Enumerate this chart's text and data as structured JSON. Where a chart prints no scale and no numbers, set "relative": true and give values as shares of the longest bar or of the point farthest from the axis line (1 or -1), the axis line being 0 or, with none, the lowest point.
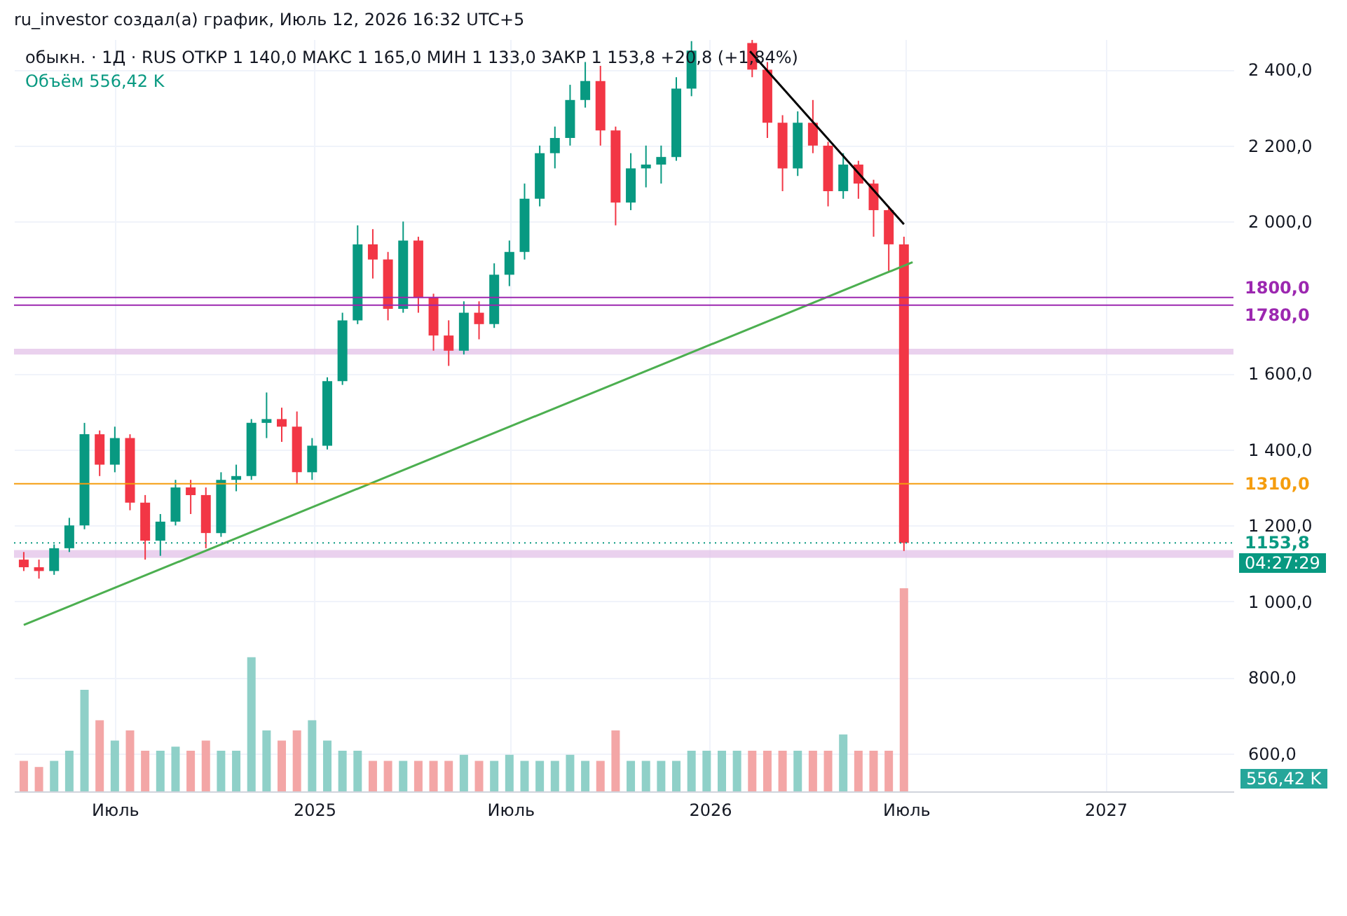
{
  "chart_data": [
    {
      "type": "candlestick",
      "title": "обыкн. · 1Д · RUS  ОТКР 1 140,0  МАКС 1 165,0  МИН 1 133,0  ЗАКР 1 153,8  +20,8 (+1,84%)",
      "annotations": [
        "ru_investor создал(а) график, Июль 12, 2026 16:32 UTC+5",
        "04:27:29"
      ],
      "x": [
        "2024-04-08",
        "2024-04-22",
        "2024-05-06",
        "2024-05-20",
        "2024-06-03",
        "2024-06-17",
        "2024-07-01",
        "2024-07-15",
        "2024-07-29",
        "2024-08-12",
        "2024-08-26",
        "2024-09-09",
        "2024-09-23",
        "2024-10-07",
        "2024-10-21",
        "2024-11-04",
        "2024-11-18",
        "2024-12-02",
        "2024-12-16",
        "2024-12-30",
        "2025-01-13",
        "2025-01-27",
        "2025-02-10",
        "2025-02-24",
        "2025-03-10",
        "2025-03-24",
        "2025-04-07",
        "2025-04-21",
        "2025-05-05",
        "2025-05-19",
        "2025-06-02",
        "2025-06-16",
        "2025-06-30",
        "2025-07-14",
        "2025-07-28",
        "2025-08-11",
        "2025-08-25",
        "2025-09-08",
        "2025-09-22",
        "2025-10-06",
        "2025-10-20",
        "2025-11-03",
        "2025-11-17",
        "2025-12-01",
        "2025-12-15",
        "2026-02-09",
        "2026-02-23",
        "2026-03-09",
        "2026-03-23",
        "2026-04-06",
        "2026-04-20",
        "2026-05-04",
        "2026-05-18",
        "2026-06-01",
        "2026-06-15",
        "2026-06-29"
      ],
      "ohlc": [
        [
          1110,
          1130,
          1080,
          1090
        ],
        [
          1090,
          1110,
          1060,
          1080
        ],
        [
          1080,
          1150,
          1070,
          1140
        ],
        [
          1140,
          1220,
          1130,
          1200
        ],
        [
          1200,
          1470,
          1190,
          1440
        ],
        [
          1440,
          1450,
          1330,
          1360
        ],
        [
          1360,
          1460,
          1340,
          1430
        ],
        [
          1430,
          1440,
          1240,
          1260
        ],
        [
          1260,
          1280,
          1110,
          1160
        ],
        [
          1160,
          1230,
          1120,
          1210
        ],
        [
          1210,
          1320,
          1200,
          1300
        ],
        [
          1300,
          1320,
          1230,
          1280
        ],
        [
          1280,
          1300,
          1140,
          1180
        ],
        [
          1180,
          1340,
          1170,
          1320
        ],
        [
          1320,
          1360,
          1290,
          1330
        ],
        [
          1330,
          1480,
          1320,
          1470
        ],
        [
          1470,
          1550,
          1430,
          1480
        ],
        [
          1480,
          1510,
          1420,
          1460
        ],
        [
          1460,
          1500,
          1310,
          1340
        ],
        [
          1340,
          1430,
          1320,
          1410
        ],
        [
          1410,
          1590,
          1400,
          1580
        ],
        [
          1580,
          1760,
          1570,
          1740
        ],
        [
          1740,
          1990,
          1730,
          1940
        ],
        [
          1940,
          1980,
          1850,
          1900
        ],
        [
          1900,
          1920,
          1740,
          1770
        ],
        [
          1770,
          2000,
          1760,
          1950
        ],
        [
          1950,
          1960,
          1760,
          1800
        ],
        [
          1800,
          1810,
          1660,
          1700
        ],
        [
          1700,
          1740,
          1620,
          1660
        ],
        [
          1660,
          1790,
          1650,
          1760
        ],
        [
          1760,
          1790,
          1690,
          1730
        ],
        [
          1730,
          1890,
          1720,
          1860
        ],
        [
          1860,
          1950,
          1830,
          1920
        ],
        [
          1920,
          2100,
          1900,
          2060
        ],
        [
          2060,
          2200,
          2040,
          2180
        ],
        [
          2180,
          2250,
          2140,
          2220
        ],
        [
          2220,
          2360,
          2200,
          2320
        ],
        [
          2320,
          2420,
          2300,
          2370
        ],
        [
          2370,
          2410,
          2200,
          2240
        ],
        [
          2240,
          2250,
          1990,
          2050
        ],
        [
          2050,
          2180,
          2030,
          2140
        ],
        [
          2140,
          2200,
          2090,
          2150
        ],
        [
          2150,
          2200,
          2100,
          2170
        ],
        [
          2170,
          2380,
          2160,
          2350
        ],
        [
          2350,
          2475,
          2330,
          2450
        ],
        [
          2470,
          2478,
          2380,
          2400
        ],
        [
          2400,
          2420,
          2220,
          2260
        ],
        [
          2260,
          2280,
          2080,
          2140
        ],
        [
          2140,
          2290,
          2120,
          2260
        ],
        [
          2260,
          2320,
          2180,
          2200
        ],
        [
          2200,
          2210,
          2040,
          2080
        ],
        [
          2080,
          2180,
          2060,
          2150
        ],
        [
          2150,
          2160,
          2060,
          2100
        ],
        [
          2100,
          2110,
          1960,
          2030
        ],
        [
          2030,
          2040,
          1870,
          1940
        ],
        [
          1940,
          1960,
          1133,
          1153.8
        ]
      ],
      "colors": [
        "#f23645",
        "#f23645",
        "#089981",
        "#089981",
        "#089981",
        "#f23645",
        "#089981",
        "#f23645",
        "#f23645",
        "#089981",
        "#089981",
        "#f23645",
        "#f23645",
        "#089981",
        "#089981",
        "#089981",
        "#089981",
        "#f23645",
        "#f23645",
        "#089981",
        "#089981",
        "#089981",
        "#089981",
        "#f23645",
        "#f23645",
        "#089981",
        "#f23645",
        "#f23645",
        "#f23645",
        "#089981",
        "#f23645",
        "#089981",
        "#089981",
        "#089981",
        "#089981",
        "#089981",
        "#089981",
        "#089981",
        "#f23645",
        "#f23645",
        "#089981",
        "#089981",
        "#089981",
        "#089981",
        "#089981",
        "#f23645",
        "#f23645",
        "#f23645",
        "#089981",
        "#f23645",
        "#f23645",
        "#089981",
        "#f23645",
        "#f23645",
        "#f23645",
        "#f23645"
      ],
      "series": [
        {
          "type": "line",
          "color": "#4caf50",
          "x": [
            "2024-04-08",
            "2026-07-07"
          ],
          "values": [
            938,
            1893
          ]
        },
        {
          "type": "line",
          "color": "#000000",
          "x": [
            "2026-02-07",
            "2026-06-29"
          ],
          "values": [
            2448,
            1993
          ]
        }
      ],
      "xlim": [
        "2024-03-30",
        "2027-04-29"
      ],
      "xticks": [
        {
          "value": "2024-07-01",
          "label": "Июль"
        },
        {
          "value": "2025-01-01",
          "label": "2025"
        },
        {
          "value": "2025-07-01",
          "label": "Июль"
        },
        {
          "value": "2026-01-01",
          "label": "2026"
        },
        {
          "value": "2026-07-01",
          "label": "Июль"
        },
        {
          "value": "2027-01-01",
          "label": "2027"
        }
      ],
      "ylim": [
        500,
        2480
      ],
      "yticks": [
        {
          "value": 600,
          "label": "600,0"
        },
        {
          "value": 800,
          "label": "800,0"
        },
        {
          "value": 1000,
          "label": "1 000,0"
        },
        {
          "value": 1200,
          "label": "1 200,0"
        },
        {
          "value": 1400,
          "label": "1 400,0"
        },
        {
          "value": 1600,
          "label": "1 600,0"
        },
        {
          "value": 2000,
          "label": "2 000,0"
        },
        {
          "value": 2200,
          "label": "2 200,0"
        },
        {
          "value": 2400,
          "label": "2 400,0"
        }
      ],
      "grid": true,
      "ref_lines": [
        {
          "axis": "y",
          "value": 1800,
          "label": "1800,0",
          "color": "#9c27b0"
        },
        {
          "axis": "y",
          "value": 1780,
          "label": "1780,0",
          "color": "#9c27b0"
        },
        {
          "axis": "y",
          "value": 1310,
          "label": "1310,0",
          "color": "#f59d0e"
        },
        {
          "axis": "y",
          "value": 1153.8,
          "label": "1153,8",
          "color": "#089981",
          "line_style": "dotted"
        }
      ],
      "bands": [
        {
          "axis": "y",
          "from": 1650,
          "to": 1665,
          "color": "#e1bee7"
        },
        {
          "axis": "y",
          "from": 1115,
          "to": 1135,
          "color": "#e1bee7"
        }
      ]
    },
    {
      "type": "bar",
      "relative": true,
      "annotations": [
        "Объём 556,42 K",
        "556,42 K"
      ],
      "x": [
        "2024-04-08",
        "2024-04-22",
        "2024-05-06",
        "2024-05-20",
        "2024-06-03",
        "2024-06-17",
        "2024-07-01",
        "2024-07-15",
        "2024-07-29",
        "2024-08-12",
        "2024-08-26",
        "2024-09-09",
        "2024-09-23",
        "2024-10-07",
        "2024-10-21",
        "2024-11-04",
        "2024-11-18",
        "2024-12-02",
        "2024-12-16",
        "2024-12-30",
        "2025-01-13",
        "2025-01-27",
        "2025-02-10",
        "2025-02-24",
        "2025-03-10",
        "2025-03-24",
        "2025-04-07",
        "2025-04-21",
        "2025-05-05",
        "2025-05-19",
        "2025-06-02",
        "2025-06-16",
        "2025-06-30",
        "2025-07-14",
        "2025-07-28",
        "2025-08-11",
        "2025-08-25",
        "2025-09-08",
        "2025-09-22",
        "2025-10-06",
        "2025-10-20",
        "2025-11-03",
        "2025-11-17",
        "2025-12-01",
        "2025-12-15",
        "2025-12-29",
        "2026-01-12",
        "2026-01-26",
        "2026-02-09",
        "2026-02-23",
        "2026-03-09",
        "2026-03-23",
        "2026-04-06",
        "2026-04-20",
        "2026-05-04",
        "2026-05-18",
        "2026-06-01",
        "2026-06-15",
        "2026-06-29"
      ],
      "values": [
        0.15,
        0.12,
        0.15,
        0.2,
        0.5,
        0.35,
        0.25,
        0.3,
        0.2,
        0.2,
        0.22,
        0.2,
        0.25,
        0.2,
        0.2,
        0.66,
        0.3,
        0.25,
        0.3,
        0.35,
        0.25,
        0.2,
        0.2,
        0.15,
        0.15,
        0.15,
        0.15,
        0.15,
        0.15,
        0.18,
        0.15,
        0.15,
        0.18,
        0.15,
        0.15,
        0.15,
        0.18,
        0.15,
        0.15,
        0.3,
        0.15,
        0.15,
        0.15,
        0.15,
        0.2,
        0.2,
        0.2,
        0.2,
        0.2,
        0.2,
        0.2,
        0.2,
        0.2,
        0.2,
        0.28,
        0.2,
        0.2,
        0.2,
        1
      ],
      "colors": [
        "#f3a6a6",
        "#f3a6a6",
        "#8fd0c8",
        "#8fd0c8",
        "#8fd0c8",
        "#f3a6a6",
        "#8fd0c8",
        "#f3a6a6",
        "#f3a6a6",
        "#8fd0c8",
        "#8fd0c8",
        "#f3a6a6",
        "#f3a6a6",
        "#8fd0c8",
        "#8fd0c8",
        "#8fd0c8",
        "#8fd0c8",
        "#f3a6a6",
        "#f3a6a6",
        "#8fd0c8",
        "#8fd0c8",
        "#8fd0c8",
        "#8fd0c8",
        "#f3a6a6",
        "#f3a6a6",
        "#8fd0c8",
        "#f3a6a6",
        "#f3a6a6",
        "#f3a6a6",
        "#8fd0c8",
        "#f3a6a6",
        "#8fd0c8",
        "#8fd0c8",
        "#8fd0c8",
        "#8fd0c8",
        "#8fd0c8",
        "#8fd0c8",
        "#8fd0c8",
        "#f3a6a6",
        "#f3a6a6",
        "#8fd0c8",
        "#8fd0c8",
        "#8fd0c8",
        "#8fd0c8",
        "#8fd0c8",
        "#8fd0c8",
        "#8fd0c8",
        "#8fd0c8",
        "#f3a6a6",
        "#f3a6a6",
        "#f3a6a6",
        "#8fd0c8",
        "#f3a6a6",
        "#f3a6a6",
        "#8fd0c8",
        "#f3a6a6",
        "#f3a6a6",
        "#f3a6a6",
        "#f3a6a6"
      ],
      "xlim": [
        "2024-03-30",
        "2027-04-29"
      ]
    }
  ]
}
